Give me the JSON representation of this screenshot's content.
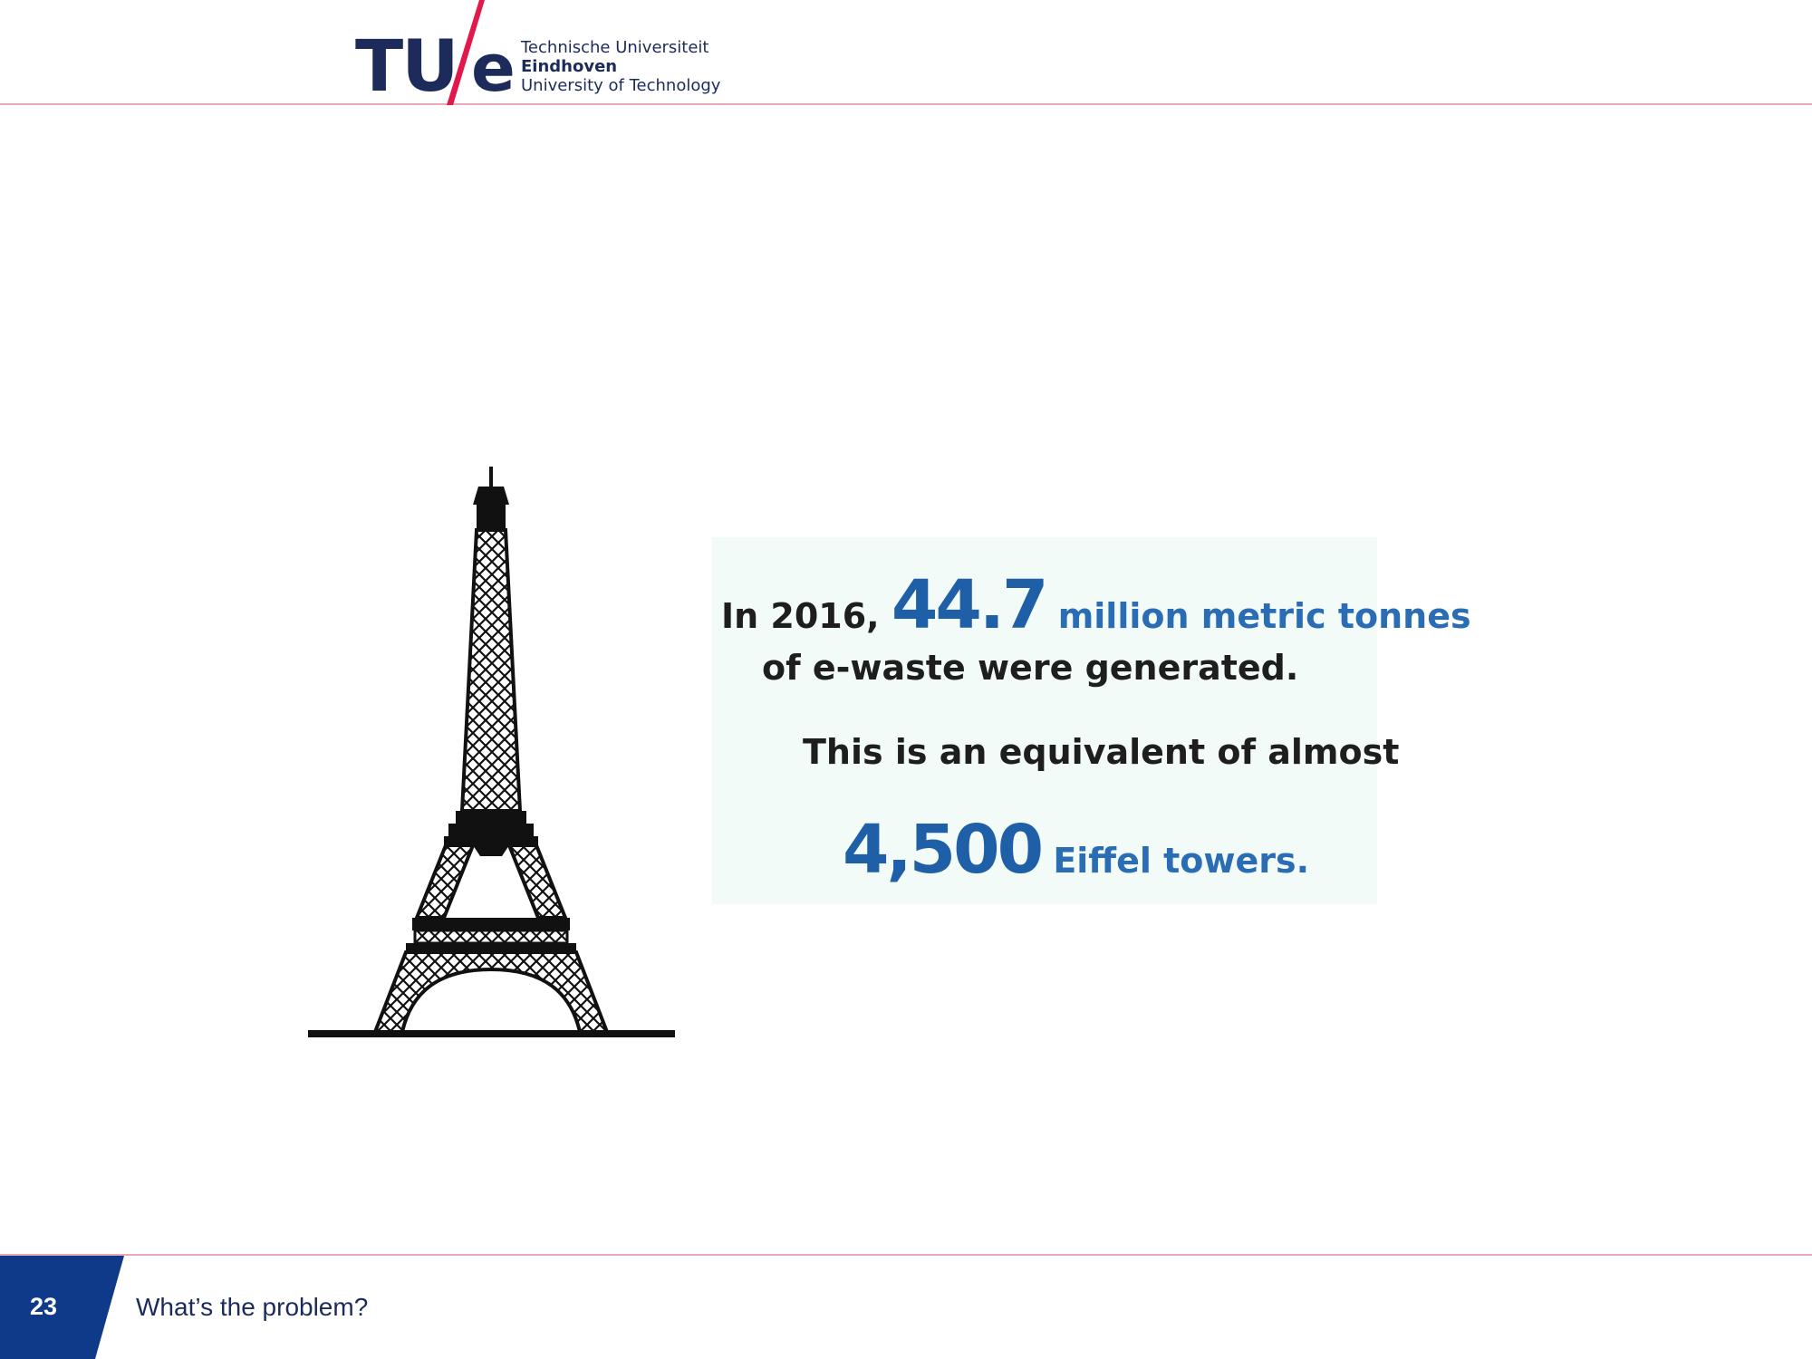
{
  "header": {
    "logo_mark": "TU",
    "logo_slash_e": "e",
    "logo_line1": "Technische Universiteit",
    "logo_line2": "Eindhoven",
    "logo_line3": "University of Technology",
    "brand_color": "#1c2b5a",
    "accent_color": "#e2174a"
  },
  "main": {
    "line1_prefix": "In 2016,",
    "line1_value": "44.7",
    "line1_unit": "million metric tonnes",
    "line2": "of e-waste were generated.",
    "line3": "This is an equivalent of almost",
    "line4_value": "4,500",
    "line4_unit": "Eiffel towers.",
    "highlight_color": "#1f5fa8",
    "illustration": "eiffel-tower-icon"
  },
  "footer": {
    "slide_number": "23",
    "title": "What’s the problem?",
    "badge_color": "#0f3a8a"
  }
}
